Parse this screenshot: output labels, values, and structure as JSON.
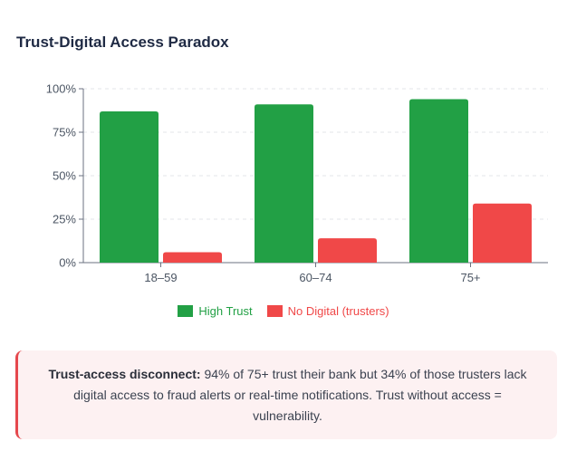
{
  "chart_data": {
    "type": "bar",
    "title": "Trust-Digital Access Paradox",
    "categories": [
      "18–59",
      "60–74",
      "75+"
    ],
    "series": [
      {
        "name": "High Trust",
        "color": "#22a045",
        "values": [
          87,
          91,
          94
        ]
      },
      {
        "name": "No Digital (trusters)",
        "color": "#f04848",
        "values": [
          6,
          14,
          34
        ]
      }
    ],
    "ylim": [
      0,
      100
    ],
    "yticks": [
      0,
      25,
      50,
      75,
      100
    ],
    "ytick_labels": [
      "0%",
      "25%",
      "50%",
      "75%",
      "100%"
    ],
    "grid": true,
    "legend": "bottom-center"
  },
  "callout": {
    "lead": "Trust-access disconnect:",
    "body": " 94% of 75+ trust their bank but 34% of those trusters lack digital access to fraud alerts or real-time notifications. Trust without access = vulnerability."
  }
}
